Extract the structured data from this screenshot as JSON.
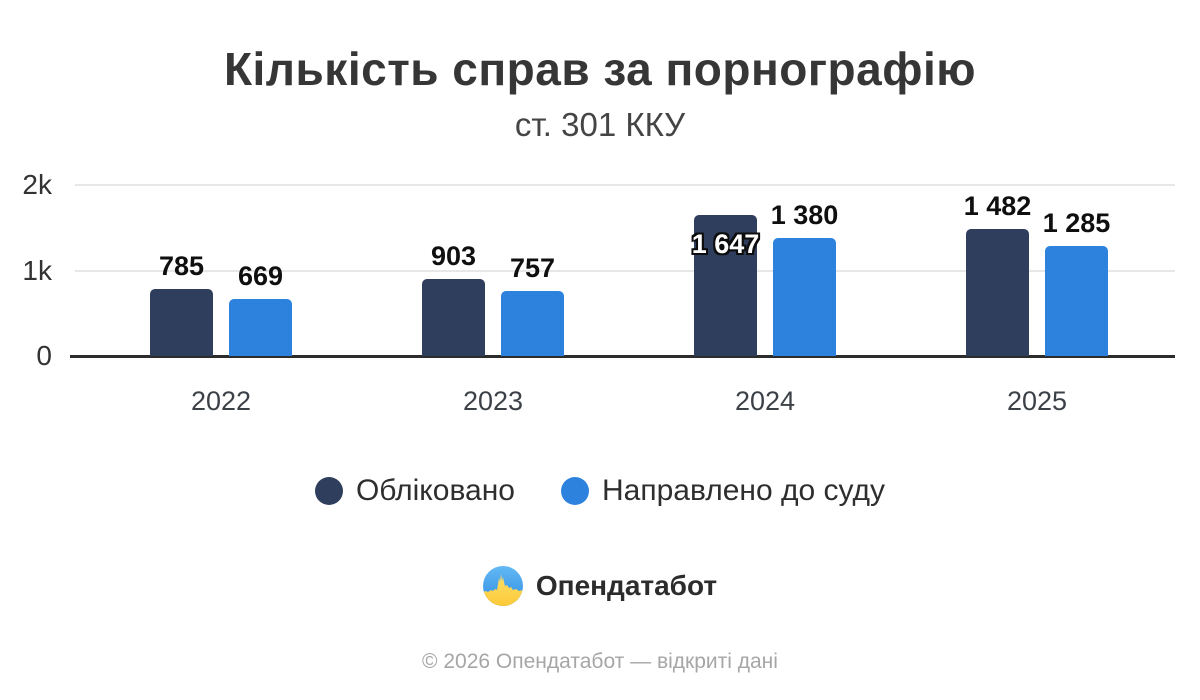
{
  "title": "Кількість справ за порнографію",
  "subtitle": "ст. 301 ККУ",
  "chart_data": {
    "type": "bar",
    "categories": [
      "2022",
      "2023",
      "2024",
      "2025"
    ],
    "series": [
      {
        "name": "Обліковано",
        "color": "#2f3e5d",
        "values": [
          785,
          903,
          1647,
          1482
        ],
        "labels": [
          "785",
          "903",
          "1 647",
          "1 482"
        ],
        "label_placement": [
          "above",
          "above",
          "inside",
          "above"
        ]
      },
      {
        "name": "Направлено до суду",
        "color": "#2d82dd",
        "values": [
          669,
          757,
          1380,
          1285
        ],
        "labels": [
          "669",
          "757",
          "1 380",
          "1 285"
        ],
        "label_placement": [
          "above",
          "above",
          "above",
          "above"
        ]
      }
    ],
    "ylim": [
      0,
      2000
    ],
    "yticks": [
      {
        "value": 0,
        "label": "0"
      },
      {
        "value": 1000,
        "label": "1k"
      },
      {
        "value": 2000,
        "label": "2k"
      }
    ],
    "grid": true,
    "legend_position": "bottom",
    "background": "#ffffff"
  },
  "footer": {
    "brand": "Опендатабот",
    "copyright": "© 2026 Опендатабот — відкриті дані"
  }
}
